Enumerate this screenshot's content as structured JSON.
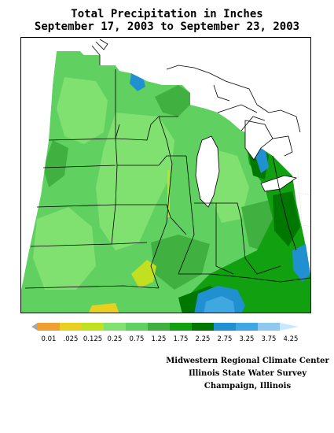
{
  "title": {
    "line1": "Total Precipitation in Inches",
    "line2": "September 17, 2003 to September 23, 2003"
  },
  "legend": {
    "labels": [
      "0.01",
      ".025",
      "0.125",
      "0.25",
      "0.75",
      "1.25",
      "1.75",
      "2.25",
      "2.75",
      "3.25",
      "3.75",
      "4.25"
    ],
    "colors": [
      "#a8a8a8",
      "#f0a030",
      "#e8d020",
      "#c0e020",
      "#80e070",
      "#60d060",
      "#40b040",
      "#10a010",
      "#007800",
      "#2090d0",
      "#40a8e0",
      "#90c8f0",
      "#c8e8ff"
    ]
  },
  "credits": {
    "line1": "Midwestern Regional Climate Center",
    "line2": "Illinois State Water Survey",
    "line3": "Champaign, Illinois"
  }
}
